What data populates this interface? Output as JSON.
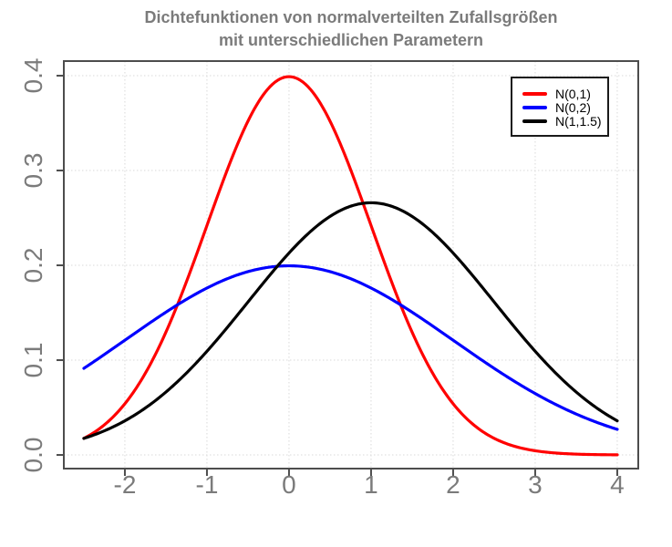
{
  "chart_data": {
    "type": "line",
    "title": "Dichtefunktionen von normalverteilten Zufallsgrößen",
    "subtitle": "mit unterschiedlichen Parametern",
    "xlabel": "",
    "ylabel": "",
    "xlim": [
      -2.744,
      4.256
    ],
    "ylim": [
      -0.0144,
      0.4154
    ],
    "x_ticks": [
      -2,
      -1,
      0,
      1,
      2,
      3,
      4
    ],
    "x_tick_labels": [
      "-2",
      "-1",
      "0",
      "1",
      "2",
      "3",
      "4"
    ],
    "y_ticks": [
      0.0,
      0.1,
      0.2,
      0.3,
      0.4
    ],
    "y_tick_labels": [
      "0.0",
      "0.1",
      "0.2",
      "0.3",
      "0.4"
    ],
    "grid": true,
    "grid_style": "dotted",
    "legend_position": "top-right",
    "x_domain": [
      -2.5,
      4.0
    ],
    "x_samples": [
      -2.5,
      -2.25,
      -2.0,
      -1.75,
      -1.5,
      -1.25,
      -1.0,
      -0.75,
      -0.5,
      -0.25,
      0.0,
      0.25,
      0.5,
      0.75,
      1.0,
      1.25,
      1.5,
      1.75,
      2.0,
      2.25,
      2.5,
      2.75,
      3.0,
      3.25,
      3.5,
      3.75,
      4.0
    ],
    "series": [
      {
        "name": "N(0,1)",
        "color": "#ff0000",
        "mean": 0,
        "sd": 1,
        "peak": 0.3989,
        "values": [
          0.0175,
          0.0317,
          0.054,
          0.0863,
          0.1295,
          0.1826,
          0.242,
          0.3011,
          0.3521,
          0.3867,
          0.3989,
          0.3867,
          0.3521,
          0.3011,
          0.242,
          0.1826,
          0.1295,
          0.0863,
          0.054,
          0.0317,
          0.0175,
          0.0091,
          0.0044,
          0.002,
          0.0009,
          0.0004,
          0.0001
        ]
      },
      {
        "name": "N(0,2)",
        "color": "#0000ff",
        "mean": 0,
        "sd": 2,
        "peak": 0.1995,
        "values": [
          0.0913,
          0.106,
          0.121,
          0.136,
          0.1506,
          0.1641,
          0.176,
          0.1859,
          0.1933,
          0.1979,
          0.1995,
          0.1979,
          0.1933,
          0.1859,
          0.176,
          0.1641,
          0.1506,
          0.136,
          0.121,
          0.106,
          0.0913,
          0.0775,
          0.0648,
          0.0533,
          0.0431,
          0.0344,
          0.027
        ]
      },
      {
        "name": "N(1,1.5)",
        "color": "#000000",
        "mean": 1,
        "sd": 1.5,
        "peak": 0.266,
        "values": [
          0.0175,
          0.0254,
          0.036,
          0.0496,
          0.0663,
          0.0863,
          0.1093,
          0.1347,
          0.1613,
          0.1879,
          0.213,
          0.2347,
          0.2516,
          0.2623,
          0.266,
          0.2623,
          0.2516,
          0.2347,
          0.213,
          0.1879,
          0.1613,
          0.1347,
          0.1093,
          0.0863,
          0.0663,
          0.0496,
          0.036
        ]
      }
    ]
  },
  "style": {
    "title_color": "#7b7b7b",
    "tick_label_color": "#7b7b7b",
    "axis_color": "#4d4d4d",
    "grid_color": "#d9d9d9",
    "curve_width": 3.2,
    "legend_border_color": "#1a1a1a",
    "legend_background": "#ffffff",
    "background": "#ffffff"
  }
}
